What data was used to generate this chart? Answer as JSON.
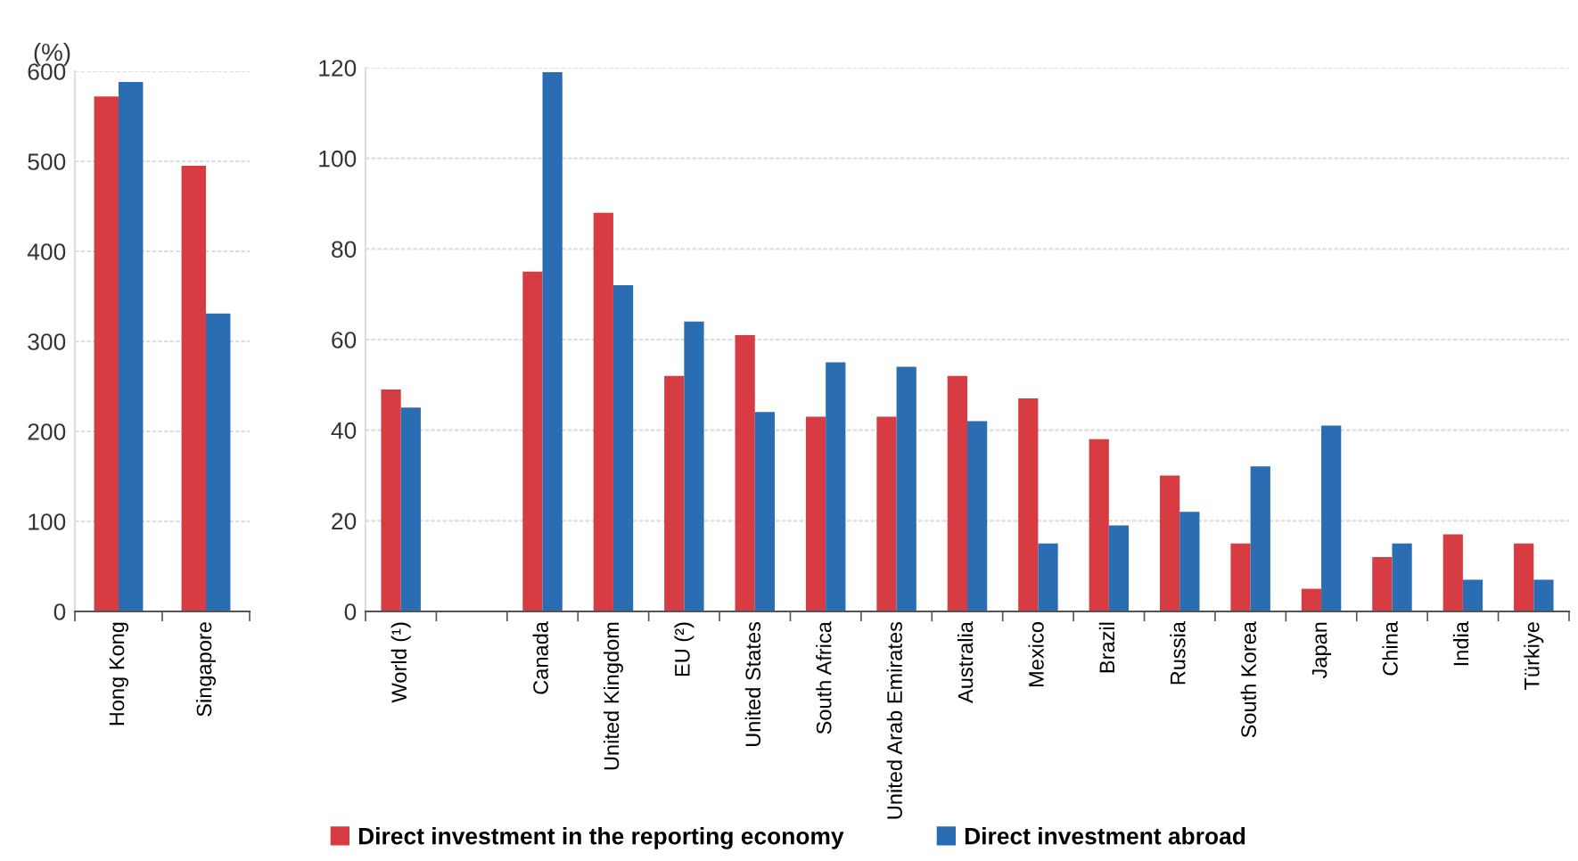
{
  "chart_data": [
    {
      "type": "bar",
      "ylabel": "(%)",
      "categories": [
        "Hong Kong",
        "Singapore"
      ],
      "ylim": [
        0,
        600
      ],
      "yticks": [
        0,
        100,
        200,
        300,
        400,
        500,
        600
      ],
      "grid": "y",
      "series": [
        {
          "color": "#d63c41",
          "values": [
            572,
            495
          ]
        },
        {
          "color": "#2a6db3",
          "values": [
            588,
            331
          ]
        }
      ]
    },
    {
      "type": "bar",
      "categories": [
        "World (¹)",
        null,
        "Canada",
        "United Kingdom",
        "EU (²)",
        "United States",
        "South Africa",
        "United Arab Emirates",
        "Australia",
        "Mexico",
        "Brazil",
        "Russia",
        "South Korea",
        "Japan",
        "China",
        "India",
        "Türkiye"
      ],
      "ylim": [
        0,
        120
      ],
      "yticks": [
        0,
        20,
        40,
        60,
        80,
        100,
        120
      ],
      "grid": "y",
      "legend": "bottom",
      "series": [
        {
          "name": "Direct investment in the reporting economy",
          "color": "#d63c41",
          "values": [
            49,
            null,
            75,
            88,
            52,
            61,
            43,
            43,
            52,
            47,
            38,
            30,
            15,
            5,
            12,
            17,
            15
          ]
        },
        {
          "name": "Direct investment abroad",
          "color": "#2a6db3",
          "values": [
            45,
            null,
            119,
            72,
            64,
            44,
            55,
            54,
            42,
            15,
            19,
            22,
            32,
            41,
            15,
            7,
            7
          ]
        }
      ]
    }
  ]
}
